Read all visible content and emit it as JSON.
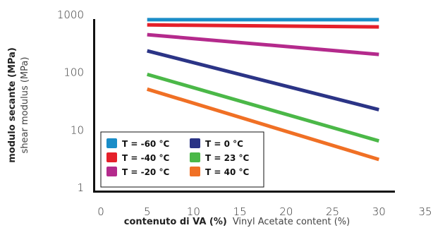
{
  "chart_data": {
    "type": "line",
    "xlabel_bold": "contenuto di VA (%)",
    "xlabel": "Vinyl Acetate content (%)",
    "ylabel_bold": "modulo secante (MPa)",
    "ylabel": "shear modulus (MPa)",
    "xlim": [
      0,
      35
    ],
    "ylim": [
      1,
      1000
    ],
    "yscale": "log",
    "x_ticks": [
      0,
      5,
      10,
      15,
      20,
      25,
      30,
      35
    ],
    "x_tick_labels": [
      "0",
      "5",
      "10",
      "15",
      "20",
      "25",
      "30",
      "35"
    ],
    "y_ticks": [
      1,
      10,
      100,
      1000
    ],
    "y_tick_labels": [
      "1",
      "10",
      "100",
      "1000"
    ],
    "grid": false,
    "legend_position": "bottom-left",
    "series": [
      {
        "name": "T = -60 °C",
        "color": "#1a8dc8",
        "x": [
          5,
          30
        ],
        "y": [
          800,
          800
        ]
      },
      {
        "name": "T = 0 °C",
        "color": "#2b3486",
        "x": [
          5,
          30
        ],
        "y": [
          230,
          22
        ]
      },
      {
        "name": "T = -40 °C",
        "color": "#e5202a",
        "x": [
          5,
          30
        ],
        "y": [
          650,
          600
        ]
      },
      {
        "name": "T = 23 °C",
        "color": "#4bb848",
        "x": [
          5,
          30
        ],
        "y": [
          90,
          6.3
        ]
      },
      {
        "name": "T = -20 °C",
        "color": "#b42a8c",
        "x": [
          5,
          30
        ],
        "y": [
          440,
          200
        ]
      },
      {
        "name": "T = 40 °C",
        "color": "#f07025",
        "x": [
          5,
          30
        ],
        "y": [
          50,
          3
        ]
      }
    ]
  }
}
